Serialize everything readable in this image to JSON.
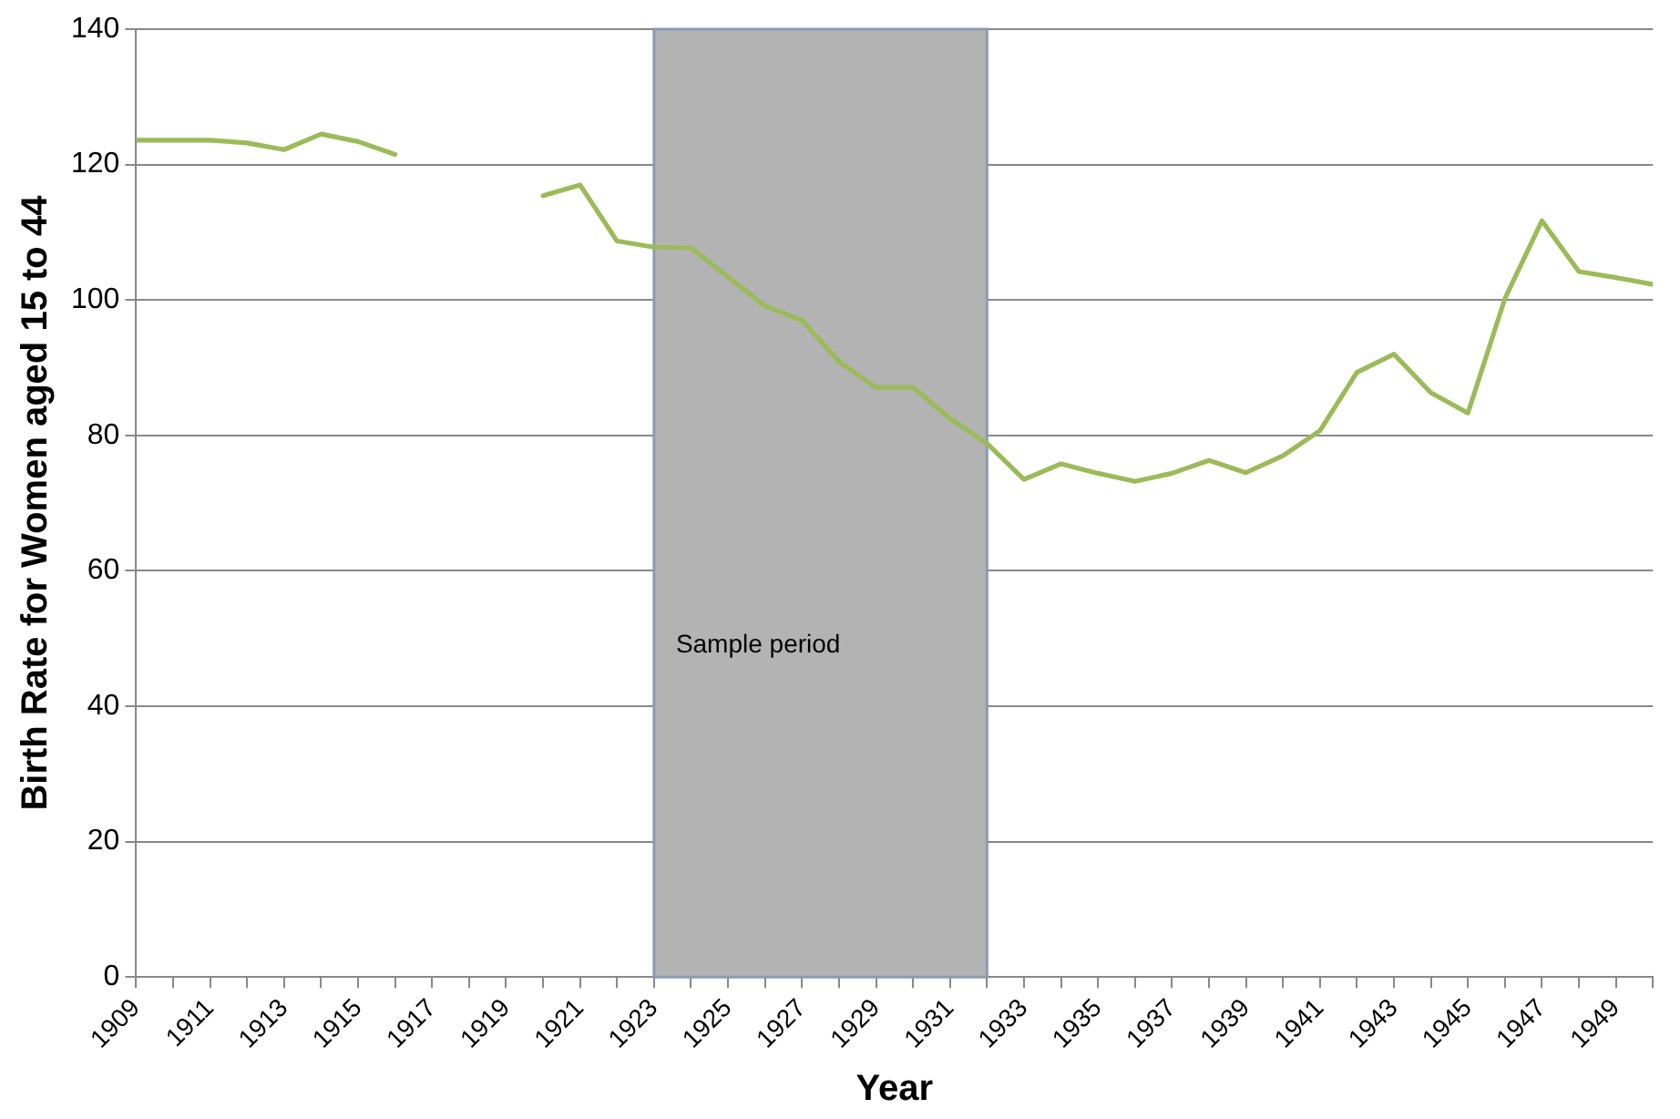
{
  "chart_data": {
    "type": "line",
    "xlabel": "Year",
    "ylabel": "Birth Rate for Women aged 15 to 44",
    "x": [
      1909,
      1910,
      1911,
      1912,
      1913,
      1914,
      1915,
      1916,
      1917,
      1918,
      1919,
      1920,
      1921,
      1922,
      1923,
      1924,
      1925,
      1926,
      1927,
      1928,
      1929,
      1930,
      1931,
      1932,
      1933,
      1934,
      1935,
      1936,
      1937,
      1938,
      1939,
      1940,
      1941,
      1942,
      1943,
      1944,
      1945,
      1946,
      1947,
      1948,
      1949,
      1950
    ],
    "series": [
      {
        "color": "#9bbb59",
        "values": [
          123.6,
          123.6,
          123.6,
          123.2,
          122.2,
          124.5,
          123.4,
          121.5,
          null,
          null,
          null,
          115.4,
          117.0,
          108.7,
          107.8,
          107.7,
          103.4,
          99.1,
          97.0,
          90.9,
          87.1,
          87.1,
          82.5,
          78.8,
          73.5,
          75.8,
          74.4,
          73.2,
          74.4,
          76.3,
          74.5,
          77.0,
          80.7,
          89.3,
          92.0,
          86.3,
          83.3,
          100.2,
          111.7,
          104.2,
          103.3,
          102.3
        ]
      }
    ],
    "xlim": [
      1909,
      1950
    ],
    "xticks": [
      1909,
      {
        "value": 1910,
        "label": null
      },
      1911,
      {
        "value": 1912,
        "label": null
      },
      1913,
      {
        "value": 1914,
        "label": null
      },
      1915,
      {
        "value": 1916,
        "label": null
      },
      1917,
      {
        "value": 1918,
        "label": null
      },
      1919,
      {
        "value": 1920,
        "label": null
      },
      1921,
      {
        "value": 1922,
        "label": null
      },
      1923,
      {
        "value": 1924,
        "label": null
      },
      1925,
      {
        "value": 1926,
        "label": null
      },
      1927,
      {
        "value": 1928,
        "label": null
      },
      1929,
      {
        "value": 1930,
        "label": null
      },
      1931,
      {
        "value": 1932,
        "label": null
      },
      1933,
      {
        "value": 1934,
        "label": null
      },
      1935,
      {
        "value": 1936,
        "label": null
      },
      1937,
      {
        "value": 1938,
        "label": null
      },
      1939,
      {
        "value": 1940,
        "label": null
      },
      1941,
      {
        "value": 1942,
        "label": null
      },
      1943,
      {
        "value": 1944,
        "label": null
      },
      1945,
      {
        "value": 1946,
        "label": null
      },
      1947,
      {
        "value": 1948,
        "label": null
      },
      1949,
      {
        "value": 1950,
        "label": null
      }
    ],
    "ylim": [
      0,
      140
    ],
    "yticks": [
      0,
      20,
      40,
      60,
      80,
      100,
      120,
      140
    ],
    "bands": [
      {
        "axis": "x",
        "from": 1923,
        "to": 1932,
        "label": "Sample period",
        "color": "#b3b3b3"
      }
    ],
    "grid": "y",
    "legend": false,
    "marker": "none",
    "line_style": "solid"
  }
}
